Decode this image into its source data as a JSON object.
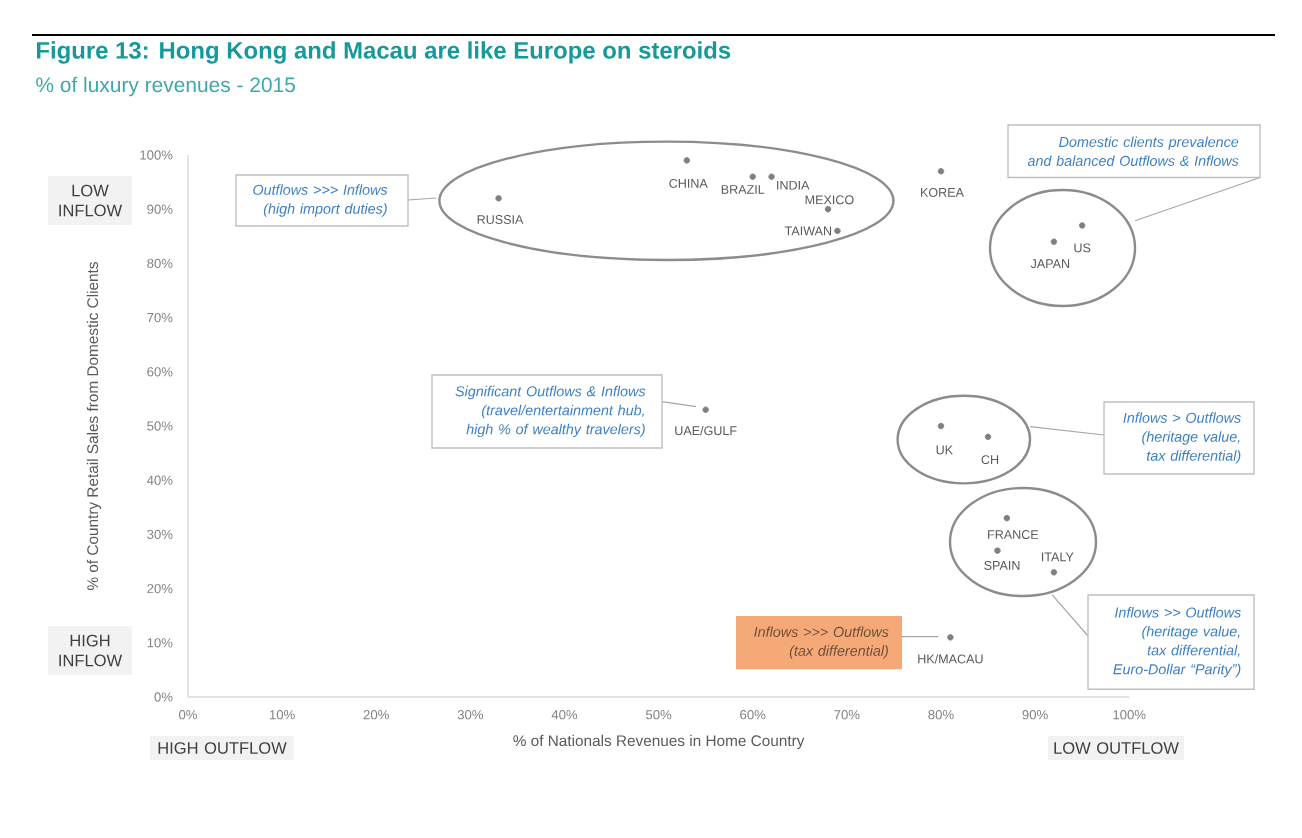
{
  "chart_data": {
    "type": "scatter",
    "title": "Figure 13: Hong Kong and Macau are like Europe on steroids",
    "subtitle": "% of luxury revenues - 2015",
    "xlabel": "% of Nationals Revenues in Home Country",
    "ylabel": "% of Country Retail Sales from Domestic Clients",
    "x": [
      33,
      53,
      60,
      62,
      68,
      69,
      80,
      95,
      92,
      55,
      80,
      85,
      87,
      86,
      92,
      81
    ],
    "values": [
      92,
      99,
      96,
      96,
      90,
      86,
      97,
      87,
      84,
      53,
      50,
      48,
      33,
      27,
      23,
      11
    ],
    "color": "#7f7f7f",
    "marker": "circle",
    "xlim": [
      0,
      100
    ],
    "ylim": [
      0,
      100
    ],
    "xticks": [
      {
        "value": 0,
        "label": "0%"
      },
      {
        "value": 10,
        "label": "10%"
      },
      {
        "value": 20,
        "label": "20%"
      },
      {
        "value": 30,
        "label": "30%"
      },
      {
        "value": 40,
        "label": "40%"
      },
      {
        "value": 50,
        "label": "50%"
      },
      {
        "value": 60,
        "label": "60%"
      },
      {
        "value": 70,
        "label": "70%"
      },
      {
        "value": 80,
        "label": "80%"
      },
      {
        "value": 90,
        "label": "90%"
      },
      {
        "value": 100,
        "label": "100%"
      }
    ],
    "yticks": [
      {
        "value": 0,
        "label": "0%"
      },
      {
        "value": 10,
        "label": "10%"
      },
      {
        "value": 20,
        "label": "20%"
      },
      {
        "value": 30,
        "label": "30%"
      },
      {
        "value": 40,
        "label": "40%"
      },
      {
        "value": 50,
        "label": "50%"
      },
      {
        "value": 60,
        "label": "60%"
      },
      {
        "value": 70,
        "label": "70%"
      },
      {
        "value": 80,
        "label": "80%"
      },
      {
        "value": 90,
        "label": "90%"
      },
      {
        "value": 100,
        "label": "100%"
      }
    ],
    "annotations": [
      {
        "text": "RUSSIA",
        "x": 33,
        "y": 92
      },
      {
        "text": "CHINA",
        "x": 53,
        "y": 99
      },
      {
        "text": "BRAZIL",
        "x": 60,
        "y": 96
      },
      {
        "text": "INDIA",
        "x": 62,
        "y": 96
      },
      {
        "text": "MEXICO",
        "x": 68,
        "y": 90
      },
      {
        "text": "TAIWAN",
        "x": 69,
        "y": 86
      },
      {
        "text": "KOREA",
        "x": 80,
        "y": 97
      },
      {
        "text": "US",
        "x": 95,
        "y": 87
      },
      {
        "text": "JAPAN",
        "x": 92,
        "y": 84
      },
      {
        "text": "UAE/GULF",
        "x": 55,
        "y": 53
      },
      {
        "text": "UK",
        "x": 80,
        "y": 50
      },
      {
        "text": "CH",
        "x": 85,
        "y": 48
      },
      {
        "text": "FRANCE",
        "x": 87,
        "y": 33
      },
      {
        "text": "SPAIN",
        "x": 86,
        "y": 27
      },
      {
        "text": "ITALY",
        "x": 92,
        "y": 23
      },
      {
        "text": "HK/MACAU",
        "x": 81,
        "y": 11
      },
      "Outflows >>> Inflows\n(high import duties)",
      "Domestic clients prevalence\nand balanced Outflows & Inflows",
      "Significant Outflows & Inflows\n(travel/entertainment hub,\nhigh % of wealthy travelers)",
      "Inflows > Outflows\n(heritage value,\ntax differential)",
      "Inflows >> Outflows\n(heritage value,\ntax differential,\nEuro-Dollar “Parity”)",
      "Inflows >>> Outflows\n(tax differential)",
      "LOW\nINFLOW",
      "HIGH\nINFLOW",
      "HIGH OUTFLOW",
      "LOW OUTFLOW"
    ]
  }
}
